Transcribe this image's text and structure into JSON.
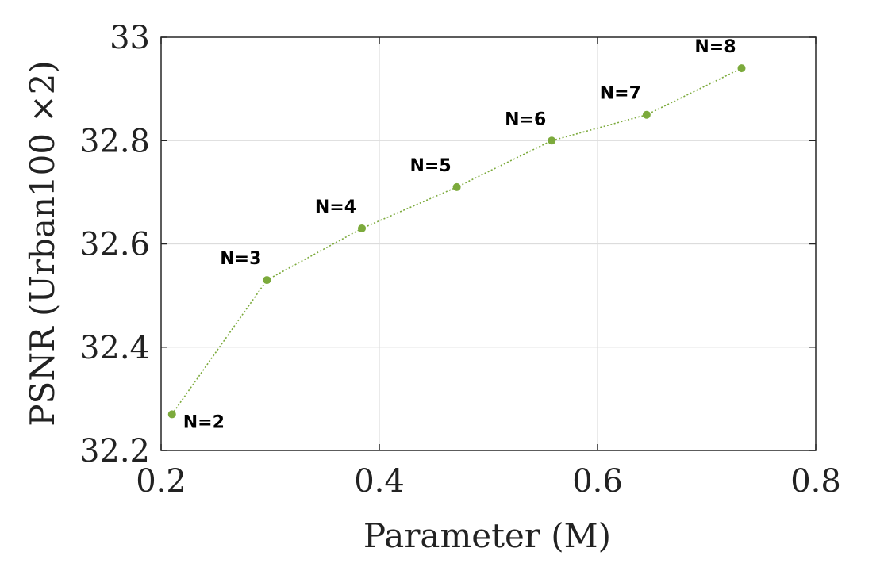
{
  "chart_data": {
    "type": "line",
    "xlabel": "Parameter (M)",
    "ylabel": "PSNR (Urban100 ×2)",
    "xlim": [
      0.2,
      0.8
    ],
    "ylim": [
      32.2,
      33.0
    ],
    "x_ticks": [
      "0.2",
      "0.4",
      "0.6",
      "0.8"
    ],
    "y_ticks": [
      "32.2",
      "32.4",
      "32.6",
      "32.8",
      "33"
    ],
    "grid": true,
    "line_style": "dotted",
    "color": "#7caa3c",
    "points": [
      {
        "x": 0.21,
        "y": 32.27,
        "label": "N=2",
        "label_pos": "right-below"
      },
      {
        "x": 0.297,
        "y": 32.53,
        "label": "N=3",
        "label_pos": "left-above"
      },
      {
        "x": 0.384,
        "y": 32.63,
        "label": "N=4",
        "label_pos": "left-above"
      },
      {
        "x": 0.471,
        "y": 32.71,
        "label": "N=5",
        "label_pos": "left-above"
      },
      {
        "x": 0.558,
        "y": 32.8,
        "label": "N=6",
        "label_pos": "left-above"
      },
      {
        "x": 0.645,
        "y": 32.85,
        "label": "N=7",
        "label_pos": "left-above"
      },
      {
        "x": 0.732,
        "y": 32.94,
        "label": "N=8",
        "label_pos": "left-above"
      }
    ]
  }
}
